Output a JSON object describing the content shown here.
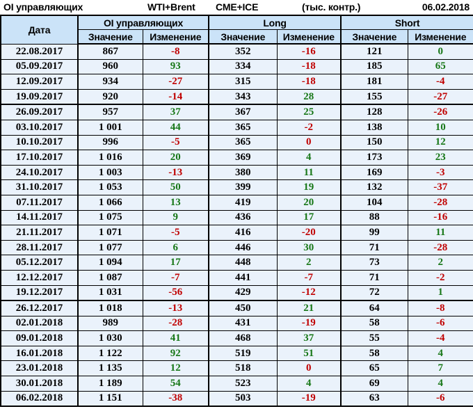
{
  "topbar": {
    "title": "OI управляющих",
    "instrument": "WTI+Brent",
    "exchange": "CME+ICE",
    "units": "(тыс. контр.)",
    "date": "06.02.2018"
  },
  "colors": {
    "positive": "#177717",
    "negative": "#C00000",
    "header_bg": "#CBE3F8",
    "row_bg": "#EAF2FB",
    "border": "#000000"
  },
  "table": {
    "date_header": "Дата",
    "groups": [
      {
        "label": "OI управляющих"
      },
      {
        "label": "Long"
      },
      {
        "label": "Short"
      }
    ],
    "subheaders": {
      "value": "Значение",
      "change": "Изменение"
    },
    "thick_border_after_dates": [
      "19.09.2017",
      "19.12.2017"
    ],
    "rows": [
      {
        "date": "22.08.2017",
        "oi": "867",
        "oi_chg": "-8",
        "long": "352",
        "long_chg": "-16",
        "short": "121",
        "short_chg": "0",
        "zero": {
          "short_chg": "pos"
        }
      },
      {
        "date": "05.09.2017",
        "oi": "960",
        "oi_chg": "93",
        "long": "334",
        "long_chg": "-18",
        "short": "185",
        "short_chg": "65"
      },
      {
        "date": "12.09.2017",
        "oi": "934",
        "oi_chg": "-27",
        "long": "315",
        "long_chg": "-18",
        "short": "181",
        "short_chg": "-4"
      },
      {
        "date": "19.09.2017",
        "oi": "920",
        "oi_chg": "-14",
        "long": "343",
        "long_chg": "28",
        "short": "155",
        "short_chg": "-27"
      },
      {
        "date": "26.09.2017",
        "oi": "957",
        "oi_chg": "37",
        "long": "367",
        "long_chg": "25",
        "short": "128",
        "short_chg": "-26"
      },
      {
        "date": "03.10.2017",
        "oi": "1 001",
        "oi_chg": "44",
        "long": "365",
        "long_chg": "-2",
        "short": "138",
        "short_chg": "10"
      },
      {
        "date": "10.10.2017",
        "oi": "996",
        "oi_chg": "-5",
        "long": "365",
        "long_chg": "0",
        "short": "150",
        "short_chg": "12",
        "zero": {
          "long_chg": "neg"
        }
      },
      {
        "date": "17.10.2017",
        "oi": "1 016",
        "oi_chg": "20",
        "long": "369",
        "long_chg": "4",
        "short": "173",
        "short_chg": "23"
      },
      {
        "date": "24.10.2017",
        "oi": "1 003",
        "oi_chg": "-13",
        "long": "380",
        "long_chg": "11",
        "short": "169",
        "short_chg": "-3"
      },
      {
        "date": "31.10.2017",
        "oi": "1 053",
        "oi_chg": "50",
        "long": "399",
        "long_chg": "19",
        "short": "132",
        "short_chg": "-37"
      },
      {
        "date": "07.11.2017",
        "oi": "1 066",
        "oi_chg": "13",
        "long": "419",
        "long_chg": "20",
        "short": "104",
        "short_chg": "-28"
      },
      {
        "date": "14.11.2017",
        "oi": "1 075",
        "oi_chg": "9",
        "long": "436",
        "long_chg": "17",
        "short": "88",
        "short_chg": "-16"
      },
      {
        "date": "21.11.2017",
        "oi": "1 071",
        "oi_chg": "-5",
        "long": "416",
        "long_chg": "-20",
        "short": "99",
        "short_chg": "11"
      },
      {
        "date": "28.11.2017",
        "oi": "1 077",
        "oi_chg": "6",
        "long": "446",
        "long_chg": "30",
        "short": "71",
        "short_chg": "-28"
      },
      {
        "date": "05.12.2017",
        "oi": "1 094",
        "oi_chg": "17",
        "long": "448",
        "long_chg": "2",
        "short": "73",
        "short_chg": "2"
      },
      {
        "date": "12.12.2017",
        "oi": "1 087",
        "oi_chg": "-7",
        "long": "441",
        "long_chg": "-7",
        "short": "71",
        "short_chg": "-2"
      },
      {
        "date": "19.12.2017",
        "oi": "1 031",
        "oi_chg": "-56",
        "long": "429",
        "long_chg": "-12",
        "short": "72",
        "short_chg": "1"
      },
      {
        "date": "26.12.2017",
        "oi": "1 018",
        "oi_chg": "-13",
        "long": "450",
        "long_chg": "21",
        "short": "64",
        "short_chg": "-8"
      },
      {
        "date": "02.01.2018",
        "oi": "989",
        "oi_chg": "-28",
        "long": "431",
        "long_chg": "-19",
        "short": "58",
        "short_chg": "-6"
      },
      {
        "date": "09.01.2018",
        "oi": "1 030",
        "oi_chg": "41",
        "long": "468",
        "long_chg": "37",
        "short": "55",
        "short_chg": "-4"
      },
      {
        "date": "16.01.2018",
        "oi": "1 122",
        "oi_chg": "92",
        "long": "519",
        "long_chg": "51",
        "short": "58",
        "short_chg": "4"
      },
      {
        "date": "23.01.2018",
        "oi": "1 135",
        "oi_chg": "12",
        "long": "518",
        "long_chg": "0",
        "short": "65",
        "short_chg": "7",
        "zero": {
          "long_chg": "neg"
        }
      },
      {
        "date": "30.01.2018",
        "oi": "1 189",
        "oi_chg": "54",
        "long": "523",
        "long_chg": "4",
        "short": "69",
        "short_chg": "4"
      },
      {
        "date": "06.02.2018",
        "oi": "1 151",
        "oi_chg": "-38",
        "long": "503",
        "long_chg": "-19",
        "short": "63",
        "short_chg": "-6"
      }
    ]
  },
  "chart_data": {
    "type": "table",
    "title": "OI управляющих WTI+Brent CME+ICE (тыс. контр.) 06.02.2018",
    "columns": [
      "Дата",
      "OI управляющих Значение",
      "OI управляющих Изменение",
      "Long Значение",
      "Long Изменение",
      "Short Значение",
      "Short Изменение"
    ],
    "rows": [
      [
        "22.08.2017",
        867,
        -8,
        352,
        -16,
        121,
        0
      ],
      [
        "05.09.2017",
        960,
        93,
        334,
        -18,
        185,
        65
      ],
      [
        "12.09.2017",
        934,
        -27,
        315,
        -18,
        181,
        -4
      ],
      [
        "19.09.2017",
        920,
        -14,
        343,
        28,
        155,
        -27
      ],
      [
        "26.09.2017",
        957,
        37,
        367,
        25,
        128,
        -26
      ],
      [
        "03.10.2017",
        1001,
        44,
        365,
        -2,
        138,
        10
      ],
      [
        "10.10.2017",
        996,
        -5,
        365,
        0,
        150,
        12
      ],
      [
        "17.10.2017",
        1016,
        20,
        369,
        4,
        173,
        23
      ],
      [
        "24.10.2017",
        1003,
        -13,
        380,
        11,
        169,
        -3
      ],
      [
        "31.10.2017",
        1053,
        50,
        399,
        19,
        132,
        -37
      ],
      [
        "07.11.2017",
        1066,
        13,
        419,
        20,
        104,
        -28
      ],
      [
        "14.11.2017",
        1075,
        9,
        436,
        17,
        88,
        -16
      ],
      [
        "21.11.2017",
        1071,
        -5,
        416,
        -20,
        99,
        11
      ],
      [
        "28.11.2017",
        1077,
        6,
        446,
        30,
        71,
        -28
      ],
      [
        "05.12.2017",
        1094,
        17,
        448,
        2,
        73,
        2
      ],
      [
        "12.12.2017",
        1087,
        -7,
        441,
        -7,
        71,
        -2
      ],
      [
        "19.12.2017",
        1031,
        -56,
        429,
        -12,
        72,
        1
      ],
      [
        "26.12.2017",
        1018,
        -13,
        450,
        21,
        64,
        -8
      ],
      [
        "02.01.2018",
        989,
        -28,
        431,
        -19,
        58,
        -6
      ],
      [
        "09.01.2018",
        1030,
        41,
        468,
        37,
        55,
        -4
      ],
      [
        "16.01.2018",
        1122,
        92,
        519,
        51,
        58,
        4
      ],
      [
        "23.01.2018",
        1135,
        12,
        518,
        0,
        65,
        7
      ],
      [
        "30.01.2018",
        1189,
        54,
        523,
        4,
        69,
        4
      ],
      [
        "06.02.2018",
        1151,
        -38,
        503,
        -19,
        63,
        -6
      ]
    ]
  }
}
